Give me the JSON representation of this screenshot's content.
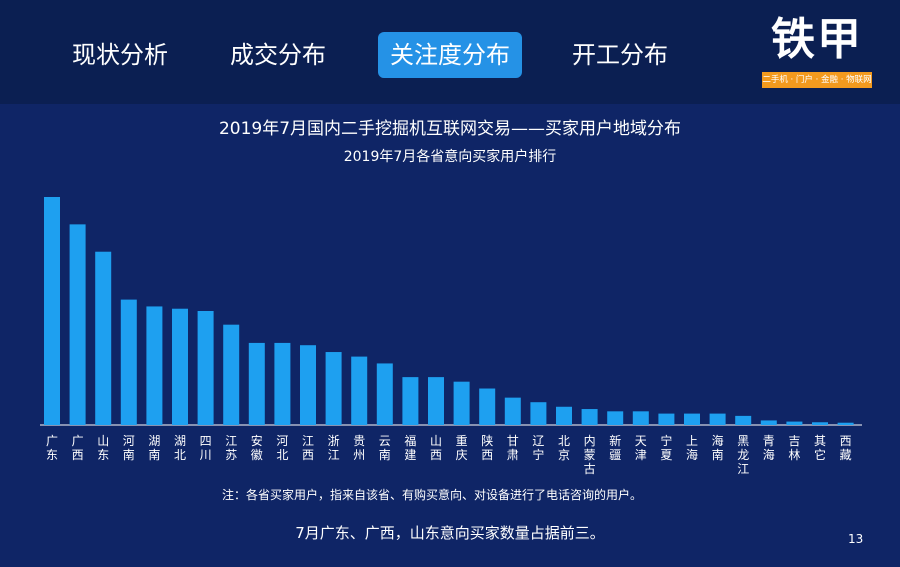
{
  "nav": {
    "tabs": [
      {
        "label": "现状分析",
        "active": false
      },
      {
        "label": "成交分布",
        "active": false
      },
      {
        "label": "关注度分布",
        "active": true
      },
      {
        "label": "开工分布",
        "active": false
      }
    ]
  },
  "logo": {
    "text": "铁甲",
    "tagline": "二手机 · 门户 · 金融 · 物联网"
  },
  "colors": {
    "background": "#0f2566",
    "topbar": "#0b1f52",
    "active_tab": "#2592e6",
    "bar": "#1ea0f0",
    "logo_accent": "#f39a1e"
  },
  "chart_data": {
    "type": "bar",
    "title": "2019年7月国内二手挖掘机互联网交易——买家用户地域分布",
    "subtitle": "2019年7月各省意向买家用户排行",
    "categories": [
      "广东",
      "广西",
      "山东",
      "河南",
      "湖南",
      "湖北",
      "四川",
      "江苏",
      "安徽",
      "河北",
      "江西",
      "浙江",
      "贵州",
      "云南",
      "福建",
      "山西",
      "重庆",
      "陕西",
      "甘肃",
      "辽宁",
      "北京",
      "内蒙古",
      "新疆",
      "天津",
      "宁夏",
      "上海",
      "海南",
      "黑龙江",
      "青海",
      "吉林",
      "其它",
      "西藏"
    ],
    "values": [
      100,
      88,
      76,
      55,
      52,
      51,
      50,
      44,
      36,
      36,
      35,
      32,
      30,
      27,
      21,
      21,
      19,
      16,
      12,
      10,
      8,
      7,
      6,
      6,
      5,
      5,
      5,
      4,
      2,
      1.5,
      1.2,
      1
    ],
    "grid": false,
    "legend": "none"
  },
  "note": "注：各省买家用户，指来自该省、有购买意向、对设备进行了电话咨询的用户。",
  "conclusion": "7月广东、广西，山东意向买家数量占据前三。",
  "page_number": "13"
}
